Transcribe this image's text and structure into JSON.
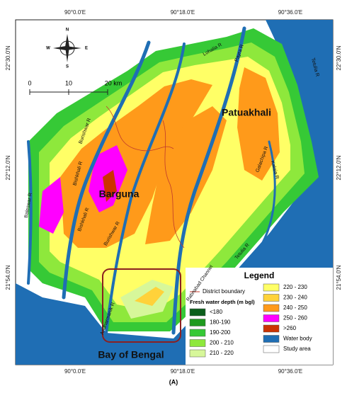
{
  "map": {
    "axes": {
      "top": [
        "90°0.0'E",
        "90°18.0'E",
        "90°36.0'E"
      ],
      "bottom": [
        "90°0.0'E",
        "90°18.0'E",
        "90°36.0'E"
      ],
      "left": [
        "22°30.0'N",
        "22°12.0'N",
        "21°54.0'N"
      ],
      "right": [
        "22°30.0'N",
        "22°12.0'N",
        "21°54.0'N"
      ]
    },
    "compass": {
      "n": "N",
      "e": "E",
      "s": "S",
      "w": "W"
    },
    "scale_bar": [
      "0",
      "10",
      "20 km"
    ],
    "places": [
      "Patuakhali",
      "Barguna",
      "Bay of Bengal"
    ],
    "rivers": [
      "Burishwar R",
      "Bishkhali R",
      "Baleswar R",
      "Lohalia R",
      "Payra R",
      "Tetulia R",
      "Kalaia R",
      "Galachipa R",
      "Rabnabad Channel",
      "Andharmanik R",
      "Bishkhali R",
      "Burishwar R",
      "Tetulia R"
    ],
    "legend": {
      "title": "Legend",
      "boundary": "District boundary",
      "depth_title": "Fresh water depth (m bgl)",
      "classes": [
        {
          "label": "<180",
          "color": "#0b5e1c"
        },
        {
          "label": "180-190",
          "color": "#1f9a1f"
        },
        {
          "label": "190-200",
          "color": "#36c936"
        },
        {
          "label": "200 - 210",
          "color": "#8ee83c"
        },
        {
          "label": "210 - 220",
          "color": "#d7f79a"
        },
        {
          "label": "220 - 230",
          "color": "#ffff66"
        },
        {
          "label": "230 - 240",
          "color": "#ffd23a"
        },
        {
          "label": "240 - 250",
          "color": "#ff9a1a"
        },
        {
          "label": "250 - 260",
          "color": "#ff00ff"
        },
        {
          "label": ">260",
          "color": "#cc3300"
        },
        {
          "label": "Water body",
          "color": "#1f6eb4"
        },
        {
          "label": "Study area",
          "color": "#ffffff"
        }
      ]
    }
  },
  "caption": "(A)"
}
